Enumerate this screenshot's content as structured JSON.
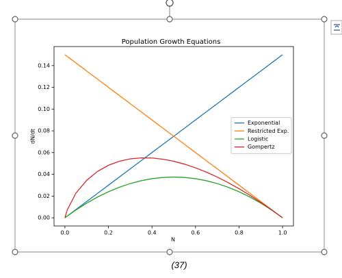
{
  "chart_data": {
    "type": "line",
    "title": "Population Growth Equations",
    "x_label": "N",
    "y_label": "dN/dt",
    "x": [
      0,
      0.01,
      0.05,
      0.1,
      0.15,
      0.2,
      0.25,
      0.3,
      0.35,
      0.4,
      0.45,
      0.5,
      0.55,
      0.6,
      0.65,
      0.7,
      0.75,
      0.8,
      0.85,
      0.9,
      0.95,
      1.0
    ],
    "series": [
      {
        "name": "Exponential",
        "color": "#1f77b4",
        "values": [
          0,
          0.0015,
          0.0075,
          0.015,
          0.0225,
          0.03,
          0.0375,
          0.045,
          0.0525,
          0.06,
          0.0675,
          0.075,
          0.0825,
          0.09,
          0.0975,
          0.105,
          0.1125,
          0.12,
          0.1275,
          0.135,
          0.1425,
          0.15
        ]
      },
      {
        "name": "Restricted Exp.",
        "color": "#ff7f0e",
        "values": [
          0.15,
          0.1485,
          0.1425,
          0.135,
          0.1275,
          0.12,
          0.1125,
          0.105,
          0.0975,
          0.09,
          0.0825,
          0.075,
          0.0675,
          0.06,
          0.0525,
          0.045,
          0.0375,
          0.03,
          0.0225,
          0.015,
          0.0075,
          0
        ]
      },
      {
        "name": "Logistic",
        "color": "#2ca02c",
        "values": [
          0,
          0.0015,
          0.0071,
          0.0135,
          0.0191,
          0.024,
          0.0281,
          0.0315,
          0.0341,
          0.036,
          0.0371,
          0.0375,
          0.0371,
          0.036,
          0.0341,
          0.0315,
          0.0281,
          0.024,
          0.0191,
          0.0135,
          0.0071,
          0
        ]
      },
      {
        "name": "Gompertz",
        "color": "#d62728",
        "values": [
          0,
          0.0069,
          0.0225,
          0.0345,
          0.0427,
          0.0483,
          0.052,
          0.0542,
          0.0551,
          0.055,
          0.0539,
          0.052,
          0.0493,
          0.046,
          0.042,
          0.0375,
          0.0324,
          0.0268,
          0.0207,
          0.0142,
          0.0073,
          0
        ]
      }
    ],
    "xlim": [
      -0.05,
      1.05
    ],
    "ylim": [
      -0.0075,
      0.1575
    ],
    "xticks": [
      {
        "value": 0,
        "label": "0.0"
      },
      {
        "value": 0.2,
        "label": "0.2"
      },
      {
        "value": 0.4,
        "label": "0.4"
      },
      {
        "value": 0.6,
        "label": "0.6"
      },
      {
        "value": 0.8,
        "label": "0.8"
      },
      {
        "value": 1.0,
        "label": "1.0"
      }
    ],
    "yticks": [
      {
        "value": 0,
        "label": "0.00"
      },
      {
        "value": 0.02,
        "label": "0.02"
      },
      {
        "value": 0.04,
        "label": "0.04"
      },
      {
        "value": 0.06,
        "label": "0.06"
      },
      {
        "value": 0.08,
        "label": "0.08"
      },
      {
        "value": 0.1,
        "label": "0.10"
      },
      {
        "value": 0.12,
        "label": "0.12"
      },
      {
        "value": 0.14,
        "label": "0.14"
      }
    ],
    "legend": "center right"
  },
  "caption": "(37)"
}
